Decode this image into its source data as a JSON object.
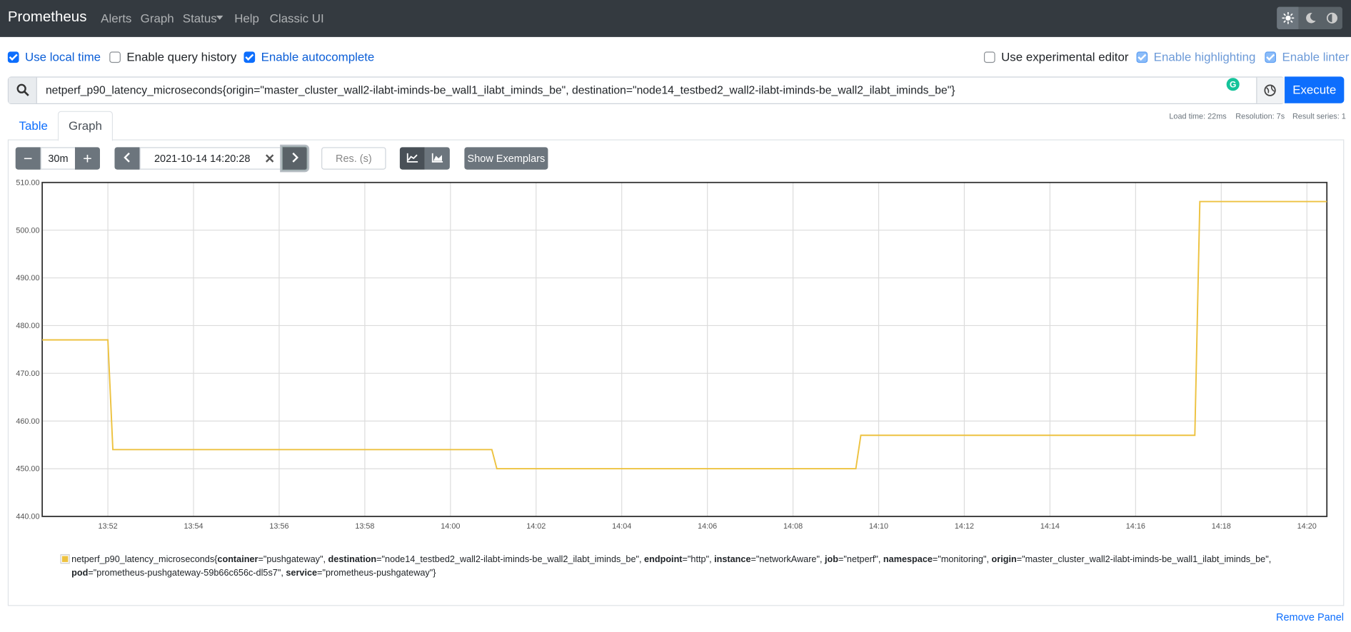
{
  "navbar": {
    "brand": "Prometheus",
    "links": [
      "Alerts",
      "Graph",
      "Status",
      "Help",
      "Classic UI"
    ]
  },
  "options": [
    {
      "label": "Use local time",
      "checked": true
    },
    {
      "label": "Enable query history",
      "checked": false
    },
    {
      "label": "Enable autocomplete",
      "checked": true
    },
    {
      "label": "Use experimental editor",
      "checked": false
    },
    {
      "label": "Enable highlighting",
      "checked": true
    },
    {
      "label": "Enable linter",
      "checked": true
    }
  ],
  "query": {
    "expression": "netperf_p90_latency_microseconds{origin=\"master_cluster_wall2-ilabt-iminds-be_wall1_ilabt_iminds_be\", destination=\"node14_testbed2_wall2-ilabt-iminds-be_wall2_ilabt_iminds_be\"}",
    "execute": "Execute"
  },
  "stats": [
    "Load time: 22ms",
    "Resolution: 7s",
    "Result series: 1"
  ],
  "tabs": [
    "Table",
    "Graph"
  ],
  "controls": {
    "range": "30m",
    "end_time": "2021-10-14 14:20:28",
    "resolution_placeholder": "Res. (s)",
    "exemplars": "Show Exemplars"
  },
  "chart_data": {
    "type": "line",
    "xlim": [
      "13:50:28",
      "14:20:28"
    ],
    "xticks": [
      "13:52",
      "13:54",
      "13:56",
      "13:58",
      "14:00",
      "14:02",
      "14:04",
      "14:06",
      "14:08",
      "14:10",
      "14:12",
      "14:14",
      "14:16",
      "14:18",
      "14:20"
    ],
    "ylim": [
      440,
      510
    ],
    "yticks": [
      {
        "value": 440,
        "label": "440.00"
      },
      {
        "value": 450,
        "label": "450.00"
      },
      {
        "value": 460,
        "label": "460.00"
      },
      {
        "value": 470,
        "label": "470.00"
      },
      {
        "value": 480,
        "label": "480.00"
      },
      {
        "value": 490,
        "label": "490.00"
      },
      {
        "value": 500,
        "label": "500.00"
      },
      {
        "value": 510,
        "label": "510.00"
      }
    ],
    "grid": true,
    "series": [
      {
        "color": "#edc240",
        "x": [
          "13:50:28",
          "13:52:00",
          "13:52:07",
          "14:00:58",
          "14:01:05",
          "14:09:28",
          "14:09:35",
          "14:17:23",
          "14:17:30",
          "14:20:28"
        ],
        "values": [
          477,
          477,
          454,
          454,
          450,
          450,
          457,
          457,
          506,
          506
        ]
      }
    ]
  },
  "legend": {
    "parts": [
      "netperf_p90_latency_microseconds{",
      "container",
      "=\"pushgateway\", ",
      "destination",
      "=\"node14_testbed2_wall2-ilabt-iminds-be_wall2_ilabt_iminds_be\", ",
      "endpoint",
      "=\"http\", ",
      "instance",
      "=\"networkAware\", ",
      "job",
      "=\"netperf\", ",
      "namespace",
      "=\"monitoring\", ",
      "origin",
      "=\"master_cluster_wall2-ilabt-iminds-be_wall1_ilabt_iminds_be\", ",
      "pod",
      "=\"prometheus-pushgateway-59b66c656c-dl5s7\", ",
      "service",
      "=\"prometheus-pushgateway\"}"
    ]
  },
  "footer": {
    "remove": "Remove Panel"
  }
}
